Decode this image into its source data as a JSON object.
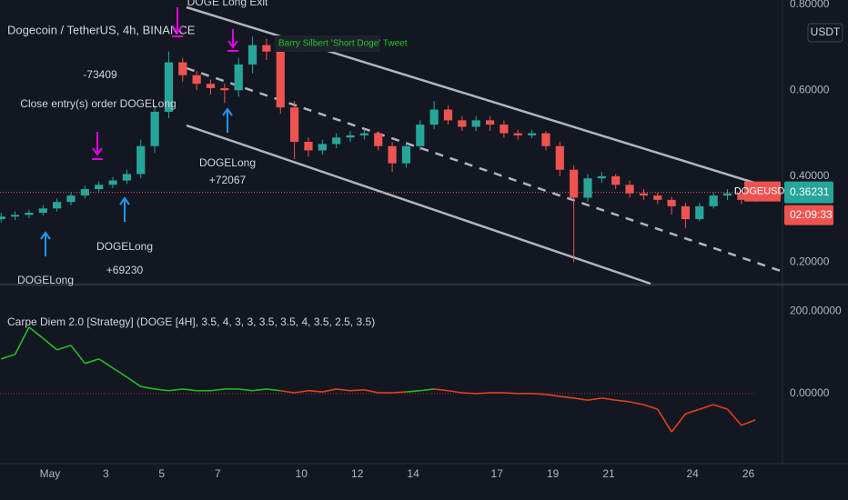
{
  "chart_data": [
    {
      "type": "candlestick",
      "title": "Dogecoin / TetherUS, 4h, BINANCE",
      "x": [
        -0.75,
        -0.25,
        0.25,
        0.75,
        1.25,
        1.75,
        2.25,
        2.75,
        3.25,
        3.75,
        4.25,
        4.75,
        5.25,
        5.75,
        6.25,
        6.75,
        7.25,
        7.75,
        8.25,
        8.75,
        9.25,
        9.75,
        10.25,
        10.75,
        11.25,
        11.75,
        12.25,
        12.75,
        13.25,
        13.75,
        14.25,
        14.75,
        15.25,
        15.75,
        16.25,
        16.75,
        17.25,
        17.75,
        18.25,
        18.75,
        19.25,
        19.75,
        20.25,
        20.75,
        21.25,
        21.75,
        22.25,
        22.75,
        23.25,
        23.75,
        24.25,
        24.75,
        25.25,
        25.75,
        26.25
      ],
      "open": [
        0.3,
        0.306,
        0.31,
        0.315,
        0.325,
        0.34,
        0.355,
        0.37,
        0.38,
        0.39,
        0.405,
        0.47,
        0.55,
        0.665,
        0.635,
        0.615,
        0.605,
        0.6,
        0.66,
        0.705,
        0.69,
        0.56,
        0.48,
        0.46,
        0.475,
        0.49,
        0.495,
        0.5,
        0.47,
        0.43,
        0.47,
        0.52,
        0.555,
        0.53,
        0.515,
        0.53,
        0.52,
        0.5,
        0.495,
        0.5,
        0.47,
        0.415,
        0.35,
        0.395,
        0.4,
        0.38,
        0.36,
        0.355,
        0.345,
        0.33,
        0.3,
        0.33,
        0.355,
        0.36,
        0.345
      ],
      "high": [
        0.315,
        0.318,
        0.322,
        0.333,
        0.348,
        0.362,
        0.378,
        0.388,
        0.398,
        0.415,
        0.485,
        0.565,
        0.69,
        0.675,
        0.645,
        0.625,
        0.615,
        0.675,
        0.725,
        0.72,
        0.7,
        0.575,
        0.49,
        0.485,
        0.5,
        0.505,
        0.51,
        0.505,
        0.48,
        0.48,
        0.53,
        0.575,
        0.565,
        0.54,
        0.54,
        0.54,
        0.53,
        0.508,
        0.508,
        0.505,
        0.48,
        0.425,
        0.405,
        0.41,
        0.405,
        0.39,
        0.37,
        0.362,
        0.352,
        0.338,
        0.338,
        0.362,
        0.37,
        0.368,
        0.372
      ],
      "low": [
        0.292,
        0.298,
        0.302,
        0.308,
        0.318,
        0.332,
        0.348,
        0.362,
        0.372,
        0.382,
        0.395,
        0.455,
        0.535,
        0.62,
        0.6,
        0.59,
        0.57,
        0.585,
        0.64,
        0.67,
        0.545,
        0.44,
        0.445,
        0.45,
        0.465,
        0.48,
        0.485,
        0.46,
        0.41,
        0.42,
        0.46,
        0.51,
        0.52,
        0.505,
        0.505,
        0.505,
        0.49,
        0.485,
        0.488,
        0.46,
        0.4,
        0.2,
        0.34,
        0.385,
        0.37,
        0.35,
        0.345,
        0.335,
        0.31,
        0.28,
        0.295,
        0.325,
        0.345,
        0.335,
        0.34
      ],
      "close": [
        0.306,
        0.31,
        0.315,
        0.325,
        0.34,
        0.355,
        0.37,
        0.38,
        0.39,
        0.405,
        0.47,
        0.55,
        0.665,
        0.635,
        0.615,
        0.605,
        0.6,
        0.66,
        0.705,
        0.69,
        0.56,
        0.48,
        0.46,
        0.475,
        0.49,
        0.495,
        0.5,
        0.47,
        0.43,
        0.47,
        0.52,
        0.555,
        0.53,
        0.515,
        0.53,
        0.52,
        0.5,
        0.495,
        0.5,
        0.47,
        0.415,
        0.35,
        0.395,
        0.4,
        0.38,
        0.36,
        0.355,
        0.345,
        0.33,
        0.3,
        0.33,
        0.355,
        0.36,
        0.345,
        0.36231
      ],
      "up_color": "#26a69a",
      "down_color": "#ef5350",
      "xlim": [
        -0.79,
        27.22
      ],
      "ylim": [
        0.15,
        0.81
      ],
      "yticks": [
        {
          "value": 0.8,
          "label": "0.80000"
        },
        {
          "value": 0.6,
          "label": "0.60000"
        },
        {
          "value": 0.4,
          "label": "0.40000"
        },
        {
          "value": 0.2,
          "label": "0.20000"
        }
      ],
      "currency_button": "USDT",
      "symbol_tag": "DOGEUSDT",
      "countdown": "02:09:33",
      "annotations": [
        "DOGE Long Exit",
        "Barry Silbert 'Short Doge' Tweet",
        "-73409",
        "Close entry(s) order DOGELong",
        "DOGELong",
        "+72067",
        "DOGELong",
        "+69230",
        "DOGELong"
      ]
    },
    {
      "type": "line",
      "title": "Carpe Diem 2.0 [Strategy] (DOGE [4H], 3.5, 4, 3, 3, 3.5, 3.5, 4, 3.5, 2.5, 3.5)",
      "x": [
        -0.75,
        -0.25,
        0.25,
        0.75,
        1.25,
        1.75,
        2.25,
        2.75,
        3.25,
        3.75,
        4.25,
        4.75,
        5.25,
        5.75,
        6.25,
        6.75,
        7.25,
        7.75,
        8.25,
        8.75,
        9.25,
        9.75,
        10.25,
        10.75,
        11.25,
        11.75,
        12.25,
        12.75,
        13.25,
        13.75,
        14.25,
        14.75,
        15.25,
        15.75,
        16.25,
        16.75,
        17.25,
        17.75,
        18.25,
        18.75,
        19.25,
        19.75,
        20.25,
        20.75,
        21.25,
        21.75,
        22.25,
        22.75,
        23.25,
        23.75,
        24.25,
        24.75,
        25.25,
        25.75,
        26.25
      ],
      "series": [
        {
          "values": [
            84,
            95,
            161,
            134,
            106,
            117,
            73,
            84,
            62,
            40,
            17,
            11,
            7,
            11,
            7,
            7,
            11,
            11,
            7,
            11,
            7,
            2,
            7,
            4,
            11,
            7,
            9,
            2,
            2,
            4,
            7,
            11,
            7,
            2,
            0,
            2,
            2,
            0,
            0,
            -2,
            -7,
            -11,
            -16,
            -11,
            -16,
            -20,
            -27,
            -38,
            -93,
            -49,
            -38,
            -27,
            -38,
            -77,
            -64
          ],
          "segment_colors": [
            "#1fbf1f",
            "#1fbf1f",
            "#1fbf1f",
            "#1fbf1f",
            "#1fbf1f",
            "#1fbf1f",
            "#1fbf1f",
            "#1fbf1f",
            "#1fbf1f",
            "#1fbf1f",
            "#1fbf1f",
            "#1fbf1f",
            "#1fbf1f",
            "#1fbf1f",
            "#1fbf1f",
            "#1fbf1f",
            "#1fbf1f",
            "#1fbf1f",
            "#1fbf1f",
            "#1fbf1f",
            "#1fbf1f",
            "#e0411b",
            "#e0411b",
            "#e0411b",
            "#e0411b",
            "#e0411b",
            "#e0411b",
            "#e0411b",
            "#e0411b",
            "#e0411b",
            "#1fbf1f",
            "#1fbf1f",
            "#e0411b",
            "#e0411b",
            "#e0411b",
            "#e0411b",
            "#e0411b",
            "#e0411b",
            "#e0411b",
            "#e0411b",
            "#e0411b",
            "#e0411b",
            "#e0411b",
            "#e0411b",
            "#e0411b",
            "#e0411b",
            "#e0411b",
            "#e0411b",
            "#e0411b",
            "#e0411b",
            "#e0411b",
            "#e0411b",
            "#e0411b",
            "#e0411b",
            "#e0411b"
          ]
        }
      ],
      "xlim": [
        -0.79,
        27.22
      ],
      "ylim": [
        -170,
        260
      ],
      "yticks": [
        {
          "value": 200,
          "label": "200.00000"
        },
        {
          "value": 0,
          "label": "0.00000"
        }
      ],
      "xticks": [
        {
          "value": 1,
          "label": "May"
        },
        3,
        5,
        7,
        10,
        12,
        14,
        17,
        19,
        21,
        24,
        26
      ]
    }
  ]
}
